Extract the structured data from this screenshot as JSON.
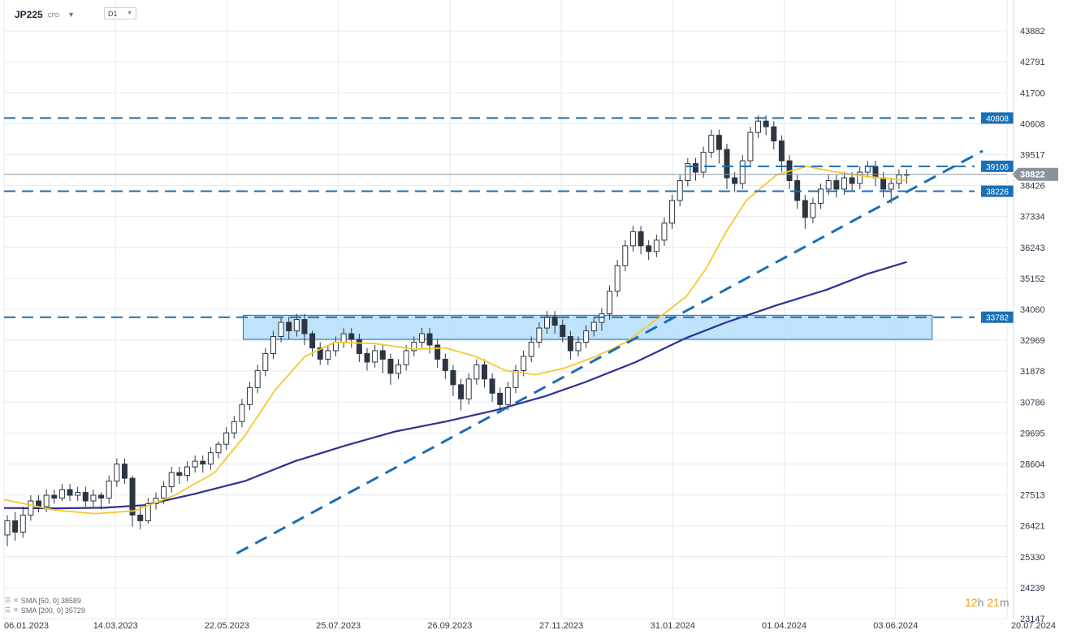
{
  "header": {
    "symbol": "JP225",
    "symbol_tag": "CFD",
    "timeframe": "D1"
  },
  "legend": [
    {
      "label": "SMA [50, 0] 38589"
    },
    {
      "label": "SMA [200, 0] 35729"
    }
  ],
  "timer": {
    "hours": "12",
    "h_unit": "h",
    "minutes": "21",
    "m_unit": "m"
  },
  "colors": {
    "candle": "#2b3642",
    "sma50": "#f5c831",
    "sma200": "#2e3192",
    "level": "#1a6fb6",
    "zone_fill": "#b8e0fb",
    "zone_border": "#1a6fb6",
    "price_tag": "#8a939d"
  },
  "chart_data": {
    "type": "candlestick",
    "title": "",
    "ylim": [
      23147,
      44973
    ],
    "y_ticks": [
      43882,
      42791,
      41700,
      40608,
      39517,
      38426,
      37334,
      36243,
      35152,
      34060,
      32969,
      31878,
      30786,
      29695,
      28604,
      27513,
      26421,
      25330,
      24239,
      23147
    ],
    "y_tick_labels": [
      "43882",
      "42791",
      "41700",
      "40608",
      "39517",
      "38426",
      "37334",
      "36243",
      "35152",
      "34060",
      "32969",
      "31878",
      "30786",
      "29695",
      "28604",
      "27513",
      "26421",
      "25330",
      "24239",
      "23147"
    ],
    "x_ticks": [
      "06.01.2023",
      "14.03.2023",
      "22.05.2023",
      "25.07.2023",
      "26.09.2023",
      "27.11.2023",
      "31.01.2024",
      "01.04.2024",
      "03.06.2024",
      "20.07.2024"
    ],
    "last_price": 38822,
    "last_price_label": "38822",
    "levels": [
      {
        "value": 40808,
        "label": "40808"
      },
      {
        "value": 39106,
        "label": "39106"
      },
      {
        "value": 38226,
        "label": "38226"
      },
      {
        "value": 33782,
        "label": "33782"
      }
    ],
    "zone": {
      "from": 33000,
      "to": 33850,
      "x_from": "22.05.2023",
      "x_to": "03.06.2024"
    },
    "trendline": {
      "from": {
        "x": "22.05.2023",
        "y": 25450
      },
      "to": {
        "x": "20.07.2024",
        "y": 39650
      }
    },
    "sma_50_path": [
      [
        0,
        27350
      ],
      [
        0.05,
        26980
      ],
      [
        0.09,
        26850
      ],
      [
        0.13,
        26950
      ],
      [
        0.17,
        27500
      ],
      [
        0.21,
        28300
      ],
      [
        0.24,
        29600
      ],
      [
        0.27,
        31200
      ],
      [
        0.3,
        32400
      ],
      [
        0.33,
        32900
      ],
      [
        0.37,
        32850
      ],
      [
        0.41,
        32650
      ],
      [
        0.44,
        32700
      ],
      [
        0.47,
        32400
      ],
      [
        0.5,
        31900
      ],
      [
        0.53,
        31750
      ],
      [
        0.56,
        32000
      ],
      [
        0.59,
        32400
      ],
      [
        0.62,
        32900
      ],
      [
        0.65,
        33700
      ],
      [
        0.68,
        34500
      ],
      [
        0.7,
        35500
      ],
      [
        0.72,
        36800
      ],
      [
        0.74,
        37900
      ],
      [
        0.77,
        38800
      ],
      [
        0.8,
        39100
      ],
      [
        0.83,
        38900
      ],
      [
        0.86,
        38750
      ],
      [
        0.9,
        38600
      ]
    ],
    "sma_200_path": [
      [
        0,
        27050
      ],
      [
        0.05,
        27040
      ],
      [
        0.1,
        27060
      ],
      [
        0.14,
        27150
      ],
      [
        0.19,
        27550
      ],
      [
        0.24,
        28000
      ],
      [
        0.29,
        28700
      ],
      [
        0.34,
        29250
      ],
      [
        0.39,
        29750
      ],
      [
        0.44,
        30100
      ],
      [
        0.49,
        30500
      ],
      [
        0.54,
        31000
      ],
      [
        0.58,
        31500
      ],
      [
        0.63,
        32200
      ],
      [
        0.68,
        33050
      ],
      [
        0.72,
        33600
      ],
      [
        0.77,
        34200
      ],
      [
        0.82,
        34750
      ],
      [
        0.86,
        35300
      ],
      [
        0.9,
        35729
      ]
    ],
    "candles": [
      [
        26100,
        26600,
        25700,
        26800
      ],
      [
        26600,
        26200,
        25900,
        26900
      ],
      [
        26200,
        26800,
        26000,
        27100
      ],
      [
        26800,
        27300,
        26600,
        27500
      ],
      [
        27300,
        27100,
        26900,
        27500
      ],
      [
        27100,
        27500,
        26900,
        27700
      ],
      [
        27500,
        27400,
        27200,
        27700
      ],
      [
        27400,
        27700,
        27300,
        27900
      ],
      [
        27700,
        27500,
        27300,
        27900
      ],
      [
        27500,
        27600,
        27300,
        27800
      ],
      [
        27600,
        27300,
        27100,
        27800
      ],
      [
        27300,
        27500,
        27100,
        27700
      ],
      [
        27500,
        27400,
        27000,
        27600
      ],
      [
        27400,
        28000,
        27200,
        28200
      ],
      [
        28000,
        28600,
        27800,
        28800
      ],
      [
        28600,
        28100,
        27900,
        28800
      ],
      [
        28100,
        26800,
        26400,
        28200
      ],
      [
        26800,
        26600,
        26300,
        27100
      ],
      [
        26600,
        27200,
        26500,
        27400
      ],
      [
        27200,
        27400,
        27000,
        27600
      ],
      [
        27400,
        27800,
        27200,
        28000
      ],
      [
        27800,
        28300,
        27600,
        28500
      ],
      [
        28300,
        28200,
        27900,
        28500
      ],
      [
        28200,
        28500,
        28000,
        28700
      ],
      [
        28500,
        28700,
        28300,
        28900
      ],
      [
        28700,
        28600,
        28300,
        28900
      ],
      [
        28600,
        29000,
        28400,
        29200
      ],
      [
        29000,
        29300,
        28800,
        29400
      ],
      [
        29300,
        29700,
        29100,
        29900
      ],
      [
        29700,
        30100,
        29500,
        30300
      ],
      [
        30100,
        30700,
        29900,
        30900
      ],
      [
        30700,
        31300,
        30500,
        31500
      ],
      [
        31300,
        31900,
        31100,
        32100
      ],
      [
        31900,
        32500,
        31700,
        32700
      ],
      [
        32500,
        33100,
        32300,
        33300
      ],
      [
        33100,
        33600,
        32900,
        33800
      ],
      [
        33600,
        33300,
        33000,
        33800
      ],
      [
        33300,
        33700,
        33100,
        33900
      ],
      [
        33700,
        33200,
        32800,
        33900
      ],
      [
        33200,
        32700,
        32400,
        33300
      ],
      [
        32700,
        32300,
        32100,
        32900
      ],
      [
        32300,
        32600,
        32100,
        32800
      ],
      [
        32600,
        32900,
        32400,
        33100
      ],
      [
        32900,
        33200,
        32700,
        33400
      ],
      [
        33200,
        33000,
        32700,
        33400
      ],
      [
        33000,
        32500,
        32200,
        33200
      ],
      [
        32500,
        32200,
        31900,
        32700
      ],
      [
        32200,
        32600,
        32000,
        32800
      ],
      [
        32600,
        32300,
        31800,
        32800
      ],
      [
        32300,
        31800,
        31400,
        32500
      ],
      [
        31800,
        32100,
        31600,
        32300
      ],
      [
        32100,
        32600,
        31900,
        32800
      ],
      [
        32600,
        32900,
        32400,
        33100
      ],
      [
        32900,
        33200,
        32700,
        33400
      ],
      [
        33200,
        32800,
        32500,
        33400
      ],
      [
        32800,
        32300,
        32000,
        33000
      ],
      [
        32300,
        31900,
        31600,
        32500
      ],
      [
        31900,
        31400,
        31000,
        32100
      ],
      [
        31400,
        30900,
        30500,
        31600
      ],
      [
        30900,
        31600,
        30700,
        31800
      ],
      [
        31600,
        32100,
        31400,
        32300
      ],
      [
        32100,
        31600,
        31300,
        32300
      ],
      [
        31600,
        31100,
        30800,
        31800
      ],
      [
        31100,
        30700,
        30400,
        31300
      ],
      [
        30700,
        31300,
        30500,
        31500
      ],
      [
        31300,
        31900,
        31100,
        32100
      ],
      [
        31900,
        32400,
        31700,
        32600
      ],
      [
        32400,
        32900,
        32200,
        33100
      ],
      [
        32900,
        33400,
        32700,
        33600
      ],
      [
        33400,
        33800,
        33200,
        34000
      ],
      [
        33800,
        33500,
        33200,
        34000
      ],
      [
        33500,
        33100,
        32900,
        33700
      ],
      [
        33100,
        32600,
        32300,
        33300
      ],
      [
        32600,
        32900,
        32400,
        33100
      ],
      [
        32900,
        33300,
        32700,
        33500
      ],
      [
        33300,
        33600,
        33100,
        33800
      ],
      [
        33600,
        33900,
        33300,
        34100
      ],
      [
        33900,
        34700,
        33700,
        34900
      ],
      [
        34700,
        35600,
        34500,
        35800
      ],
      [
        35600,
        36300,
        35400,
        36500
      ],
      [
        36300,
        36800,
        36100,
        37000
      ],
      [
        36800,
        36300,
        36000,
        37000
      ],
      [
        36300,
        36100,
        35800,
        36500
      ],
      [
        36100,
        36500,
        35900,
        36700
      ],
      [
        36500,
        37100,
        36300,
        37300
      ],
      [
        37100,
        37900,
        36900,
        38100
      ],
      [
        37900,
        38600,
        37700,
        38800
      ],
      [
        38600,
        39200,
        38400,
        39400
      ],
      [
        39200,
        38900,
        38600,
        39400
      ],
      [
        38900,
        39600,
        38700,
        39800
      ],
      [
        39600,
        40200,
        39400,
        40400
      ],
      [
        40200,
        39700,
        39200,
        40400
      ],
      [
        39700,
        38700,
        38300,
        39900
      ],
      [
        38700,
        38500,
        38200,
        38900
      ],
      [
        38500,
        39300,
        38300,
        39500
      ],
      [
        39300,
        40300,
        39100,
        40500
      ],
      [
        40300,
        40700,
        40100,
        40900
      ],
      [
        40700,
        40500,
        40200,
        40900
      ],
      [
        40500,
        40000,
        39700,
        40700
      ],
      [
        40000,
        39300,
        38900,
        40200
      ],
      [
        39300,
        38600,
        38300,
        39500
      ],
      [
        38600,
        37900,
        37600,
        38800
      ],
      [
        37900,
        37300,
        36900,
        38100
      ],
      [
        37300,
        37800,
        37100,
        38000
      ],
      [
        37800,
        38300,
        37600,
        38500
      ],
      [
        38300,
        38600,
        38100,
        38800
      ],
      [
        38600,
        38300,
        38000,
        38800
      ],
      [
        38300,
        38700,
        38100,
        38900
      ],
      [
        38700,
        38500,
        38200,
        38900
      ],
      [
        38500,
        38900,
        38300,
        39100
      ],
      [
        38900,
        39100,
        38700,
        39300
      ],
      [
        39100,
        38700,
        38400,
        39300
      ],
      [
        38700,
        38300,
        38000,
        38900
      ],
      [
        38300,
        38500,
        37800,
        38700
      ],
      [
        38500,
        38800,
        38300,
        39000
      ],
      [
        38800,
        38822,
        38500,
        39000
      ]
    ]
  }
}
